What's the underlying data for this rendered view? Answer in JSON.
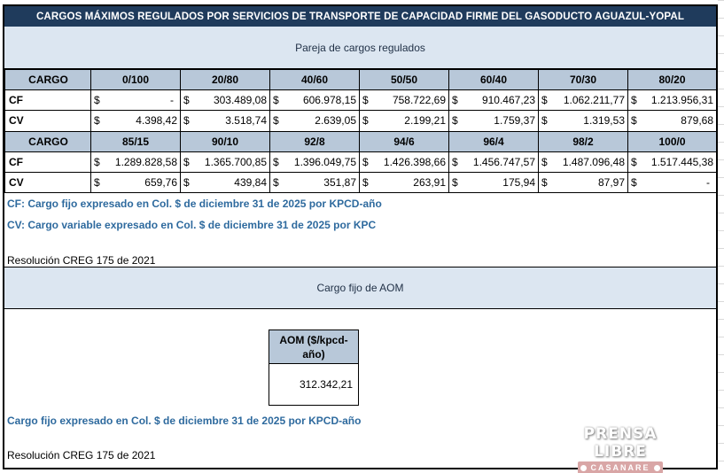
{
  "title": "CARGOS MÁXIMOS REGULADOS POR SERVICIOS DE TRANSPORTE DE CAPACIDAD FIRME DEL GASODUCTO AGUAZUL-YOPAL",
  "pair_band": "Pareja de cargos regulados",
  "table": {
    "blocks": [
      {
        "header": [
          "CARGO",
          "0/100",
          "20/80",
          "40/60",
          "50/50",
          "60/40",
          "70/30",
          "80/20"
        ],
        "rows": [
          {
            "label": "CF",
            "cells": [
              {
                "cur": "$",
                "val": "-"
              },
              {
                "cur": "$",
                "val": "303.489,08"
              },
              {
                "cur": "$",
                "val": "606.978,15"
              },
              {
                "cur": "$",
                "val": "758.722,69"
              },
              {
                "cur": "$",
                "val": "910.467,23"
              },
              {
                "cur": "$",
                "val": "1.062.211,77"
              },
              {
                "cur": "$",
                "val": "1.213.956,31"
              }
            ]
          },
          {
            "label": "CV",
            "cells": [
              {
                "cur": "$",
                "val": "4.398,42"
              },
              {
                "cur": "$",
                "val": "3.518,74"
              },
              {
                "cur": "$",
                "val": "2.639,05"
              },
              {
                "cur": "$",
                "val": "2.199,21"
              },
              {
                "cur": "$",
                "val": "1.759,37"
              },
              {
                "cur": "$",
                "val": "1.319,53"
              },
              {
                "cur": "$",
                "val": "879,68"
              }
            ]
          }
        ]
      },
      {
        "header": [
          "CARGO",
          "85/15",
          "90/10",
          "92/8",
          "94/6",
          "96/4",
          "98/2",
          "100/0"
        ],
        "rows": [
          {
            "label": "CF",
            "cells": [
              {
                "cur": "$",
                "val": "1.289.828,58"
              },
              {
                "cur": "$",
                "val": "1.365.700,85"
              },
              {
                "cur": "$",
                "val": "1.396.049,75"
              },
              {
                "cur": "$",
                "val": "1.426.398,66"
              },
              {
                "cur": "$",
                "val": "1.456.747,57"
              },
              {
                "cur": "$",
                "val": "1.487.096,48"
              },
              {
                "cur": "$",
                "val": "1.517.445,38"
              }
            ]
          },
          {
            "label": "CV",
            "cells": [
              {
                "cur": "$",
                "val": "659,76"
              },
              {
                "cur": "$",
                "val": "439,84"
              },
              {
                "cur": "$",
                "val": "351,87"
              },
              {
                "cur": "$",
                "val": "263,91"
              },
              {
                "cur": "$",
                "val": "175,94"
              },
              {
                "cur": "$",
                "val": "87,97"
              },
              {
                "cur": "$",
                "val": "-"
              }
            ]
          }
        ]
      }
    ]
  },
  "notes": {
    "cf": "CF: Cargo fijo expresado en Col. $ de diciembre 31 de 2025 por KPCD-año",
    "cv": "CV: Cargo variable expresado en Col. $ de diciembre 31 de 2025 por KPC",
    "resolution_1": "Resolución CREG 175 de 2021"
  },
  "aom": {
    "band": "Cargo fijo de AOM",
    "header": "AOM ($/kpcd-año)",
    "value": "312.342,21",
    "note": "Cargo fijo expresado en Col. $ de diciembre 31 de 2025 por KPCD-año",
    "resolution": "Resolución CREG 175 de 2021"
  },
  "watermark": {
    "top": "PRENSA LIBRE",
    "bottom": "CASANARE"
  }
}
